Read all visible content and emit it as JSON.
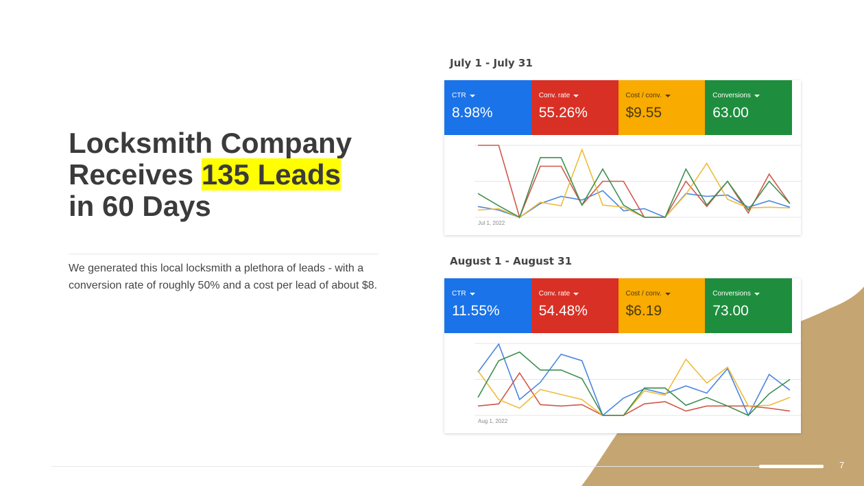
{
  "slide": {
    "title_part1": "Locksmith Company Receives ",
    "title_highlight": "135 Leads",
    "title_part2": " in 60 Days",
    "body": "We generated this local locksmith a plethora of leads - with a conversion rate of roughly 50% and a cost per lead of about $8.",
    "page_number": "7",
    "colors": {
      "highlight": "#ffff00",
      "accent_tan": "#c5a572",
      "title": "#3b3b3b"
    }
  },
  "reports": [
    {
      "period": "July 1 - July 31",
      "date_label": "Jul 1, 2022",
      "metrics": [
        {
          "label": "CTR",
          "value": "8.98%",
          "color": "#1a73e8"
        },
        {
          "label": "Conv. rate",
          "value": "55.26%",
          "color": "#d93025"
        },
        {
          "label": "Cost / conv.",
          "value": "$9.55",
          "color": "#f9ab00"
        },
        {
          "label": "Conversions",
          "value": "63.00",
          "color": "#1e8e3e"
        }
      ]
    },
    {
      "period": "August 1 - August 31",
      "date_label": "Aug 1, 2022",
      "metrics": [
        {
          "label": "CTR",
          "value": "11.55%",
          "color": "#1a73e8"
        },
        {
          "label": "Conv. rate",
          "value": "54.48%",
          "color": "#d93025"
        },
        {
          "label": "Cost / conv.",
          "value": "$6.19",
          "color": "#f9ab00"
        },
        {
          "label": "Conversions",
          "value": "73.00",
          "color": "#1e8e3e"
        }
      ]
    }
  ],
  "chart_data": [
    {
      "type": "line",
      "title": "",
      "ylim": [
        0,
        100
      ],
      "grid": true,
      "series": [
        {
          "name": "CTR",
          "color": "#4a86e0",
          "values": [
            15,
            10,
            0,
            19,
            29,
            24,
            37,
            9,
            12,
            0,
            33,
            29,
            31,
            14,
            23,
            14
          ]
        },
        {
          "name": "Conv. rate",
          "color": "#d0574a",
          "values": [
            100,
            100,
            0,
            71,
            71,
            17,
            50,
            50,
            0,
            0,
            50,
            15,
            50,
            6,
            60,
            19
          ]
        },
        {
          "name": "Cost / conv.",
          "color": "#eebc3a",
          "values": [
            10,
            12,
            0,
            21,
            16,
            94,
            17,
            14,
            0,
            0,
            32,
            75,
            25,
            13,
            14,
            13
          ]
        },
        {
          "name": "Conversions",
          "color": "#3d8f4f",
          "values": [
            33,
            16,
            0,
            83,
            83,
            17,
            67,
            17,
            0,
            0,
            67,
            17,
            50,
            10,
            50,
            19
          ]
        }
      ]
    },
    {
      "type": "line",
      "title": "",
      "ylim": [
        0,
        100
      ],
      "grid": true,
      "series": [
        {
          "name": "CTR",
          "color": "#4a86e0",
          "values": [
            60,
            99,
            22,
            46,
            85,
            76,
            0,
            24,
            37,
            30,
            41,
            31,
            65,
            0,
            57,
            35
          ]
        },
        {
          "name": "Conv. rate",
          "color": "#d0574a",
          "values": [
            13,
            16,
            59,
            15,
            13,
            15,
            0,
            0,
            16,
            19,
            6,
            13,
            13,
            13,
            10,
            6
          ]
        },
        {
          "name": "Cost / conv.",
          "color": "#eebc3a",
          "values": [
            62,
            22,
            10,
            36,
            29,
            22,
            0,
            0,
            34,
            28,
            78,
            45,
            67,
            13,
            14,
            25
          ]
        },
        {
          "name": "Conversions",
          "color": "#3d8f4f",
          "values": [
            25,
            76,
            88,
            63,
            63,
            51,
            0,
            0,
            38,
            38,
            14,
            25,
            13,
            0,
            30,
            50
          ]
        }
      ]
    }
  ]
}
